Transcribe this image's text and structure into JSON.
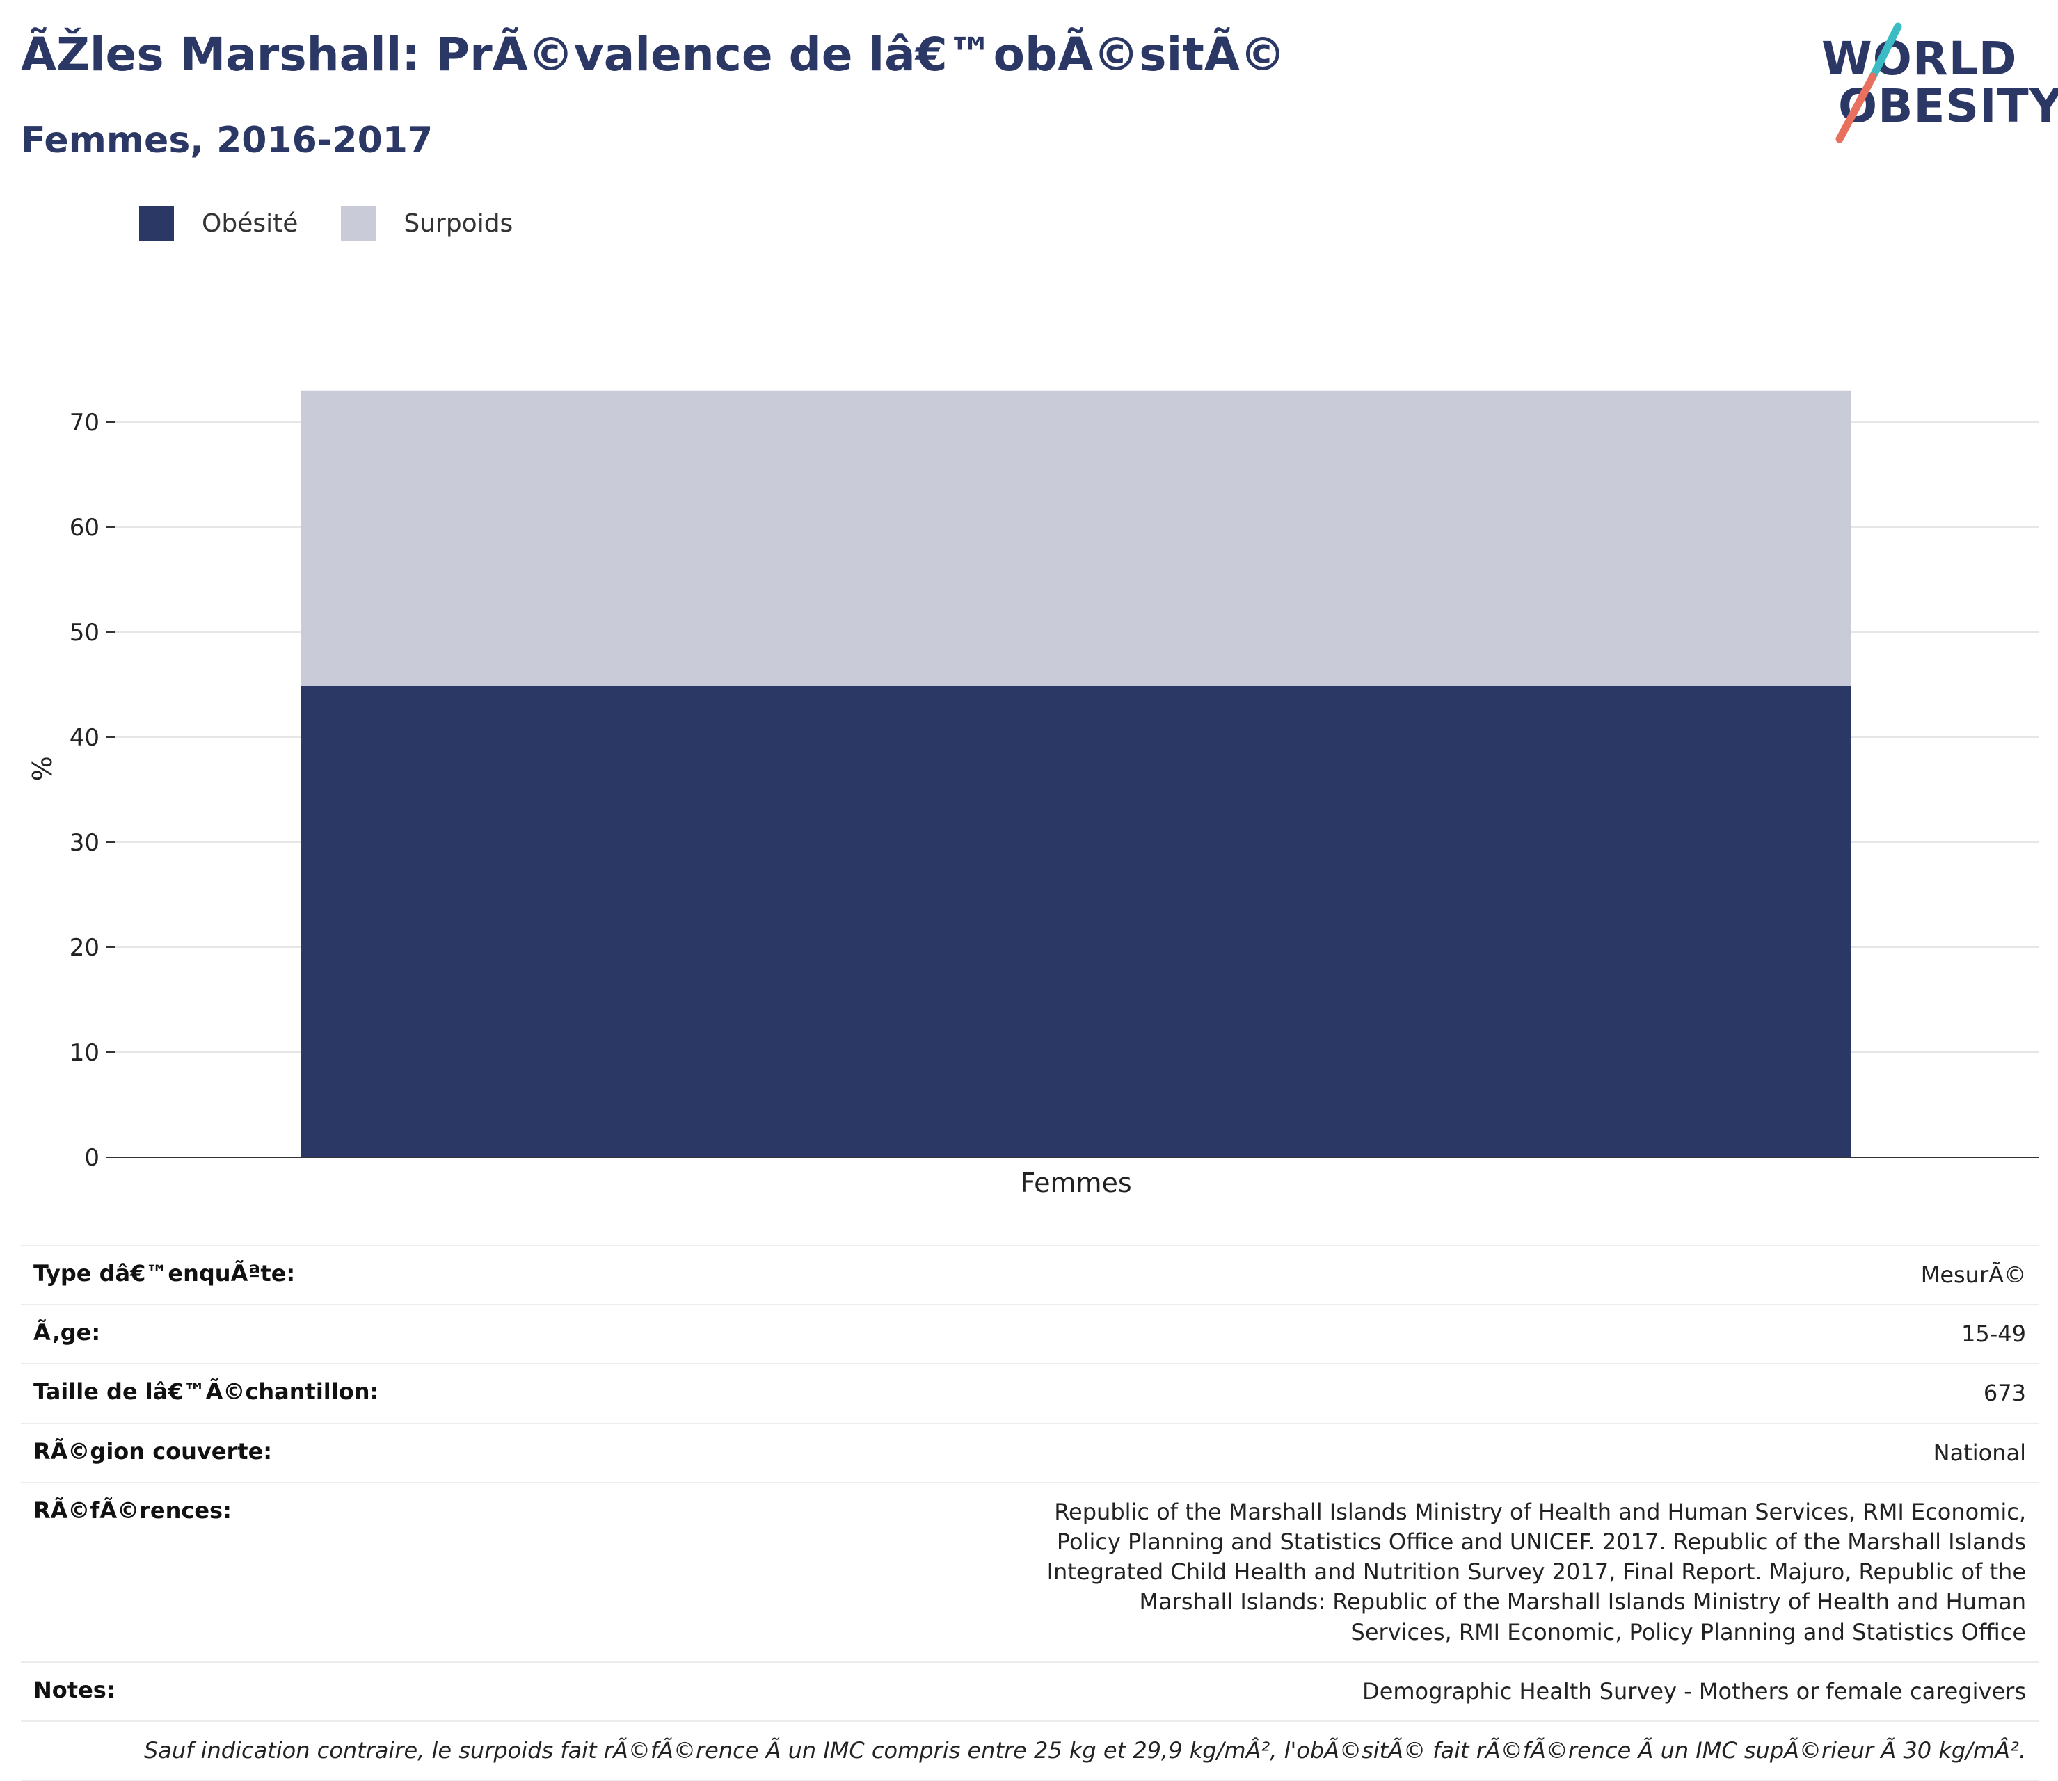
{
  "header": {
    "title": "ÃŽles Marshall: PrÃ©valence de lâ€™obÃ©sitÃ©",
    "subtitle": "Femmes, 2016-2017"
  },
  "logo": {
    "line1": "WORLD",
    "line2": "OBESITY",
    "colors": {
      "text": "#2b3764",
      "slash_top": "#3bbcc4",
      "slash_bottom": "#e8705f"
    }
  },
  "legend": {
    "items": [
      {
        "label": "Obésité",
        "color": "#2b3764"
      },
      {
        "label": "Surpoids",
        "color": "#c9ccd8"
      }
    ]
  },
  "chart_data": {
    "type": "bar",
    "stacked": true,
    "categories": [
      "Femmes"
    ],
    "series": [
      {
        "name": "Obésité",
        "values": [
          44.9
        ],
        "color": "#2b3764"
      },
      {
        "name": "Surpoids",
        "values": [
          28.1
        ],
        "color": "#c9ccd8"
      }
    ],
    "ylabel": "%",
    "xlabel": "",
    "ylim": [
      0,
      73
    ],
    "yticks": [
      0,
      10,
      20,
      30,
      40,
      50,
      60,
      70
    ],
    "grid": true,
    "legend_position": "top-left"
  },
  "info": {
    "rows": [
      {
        "key": "Type dâ€™enquÃªte:",
        "value": "MesurÃ©"
      },
      {
        "key": "Ã‚ge:",
        "value": "15-49"
      },
      {
        "key": "Taille de lâ€™Ã©chantillon:",
        "value": "673"
      },
      {
        "key": "RÃ©gion couverte:",
        "value": "National"
      },
      {
        "key": "RÃ©fÃ©rences:",
        "value": "Republic of the Marshall Islands Ministry of Health and Human Services, RMI Economic, Policy Planning and Statistics Office and UNICEF. 2017. Republic of the Marshall Islands Integrated Child Health and Nutrition Survey 2017, Final Report. Majuro, Republic of the Marshall Islands: Republic of the Marshall Islands Ministry of Health and Human Services, RMI Economic, Policy Planning and Statistics Office"
      },
      {
        "key": "Notes:",
        "value": "Demographic Health Survey - Mothers or female caregivers"
      }
    ],
    "footnote": "Sauf indication contraire, le surpoids fait rÃ©fÃ©rence Ã  un IMC compris entre 25 kg et 29,9 kg/mÂ², l'obÃ©sitÃ© fait rÃ©fÃ©rence Ã  un IMC supÃ©rieur Ã  30 kg/mÂ²."
  }
}
